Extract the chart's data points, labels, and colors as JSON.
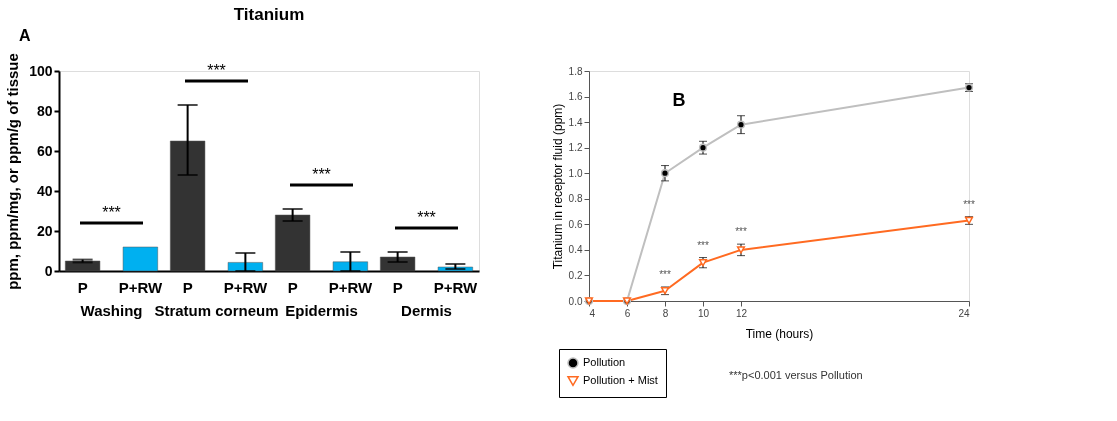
{
  "chart_data": [
    {
      "type": "bar",
      "title": "Titanium",
      "ylabel": "ppm, ppm/mg, or ppm/g of tissue",
      "categories": [
        "Washing",
        "Stratum corneum",
        "Epidermis",
        "Dermis"
      ],
      "series": [
        {
          "name": "P",
          "color": "#333333",
          "values": [
            5,
            65,
            28,
            7
          ],
          "errors": [
            0.7,
            [
              48,
              83
            ],
            [
              25,
              31
            ],
            [
              4.5,
              9.5
            ]
          ]
        },
        {
          "name": "P+RW",
          "color": "#00b0f0",
          "values": [
            12,
            4.3,
            4.6,
            2
          ],
          "errors": [
            null,
            [
              0,
              9
            ],
            [
              0,
              9.5
            ],
            [
              1,
              3.5
            ]
          ]
        }
      ],
      "ylim": [
        0,
        100
      ],
      "yticks": [
        0,
        20,
        40,
        60,
        80,
        100
      ],
      "grid": false,
      "annotations": [
        "A",
        "***",
        "***",
        "***",
        "***"
      ]
    },
    {
      "type": "line",
      "xlabel": "Time (hours)",
      "ylabel": "Titanium in receptor fluid (ppm)",
      "x": [
        4,
        6,
        8,
        10,
        12,
        24
      ],
      "series": [
        {
          "name": "Pollution",
          "color": "#bfbfbf",
          "marker": "circle",
          "values": [
            0,
            0,
            1.0,
            1.2,
            1.38,
            1.67
          ],
          "errors": [
            null,
            null,
            0.06,
            0.05,
            0.07,
            0.03
          ]
        },
        {
          "name": "Pollution + Mist",
          "color": "#ff6a21",
          "marker": "triangle",
          "values": [
            0,
            0,
            0.08,
            0.3,
            0.4,
            0.63
          ],
          "errors": [
            null,
            null,
            0.03,
            0.04,
            0.045,
            0.03
          ]
        }
      ],
      "xlim": [
        4,
        24
      ],
      "xticks": [
        4,
        6,
        8,
        10,
        12,
        24
      ],
      "ylim": [
        0,
        1.8
      ],
      "yticks": [
        {
          "value": 0,
          "label": "0.0"
        },
        0.2,
        0.4,
        0.6,
        0.8,
        {
          "value": 1,
          "label": "1.0"
        },
        1.2,
        1.4,
        1.6,
        1.8
      ],
      "grid": false,
      "legend": "bottom left",
      "annotations": [
        "B",
        "***p<0.001 versus Pollution",
        "***",
        "***",
        "***",
        "***"
      ]
    }
  ]
}
